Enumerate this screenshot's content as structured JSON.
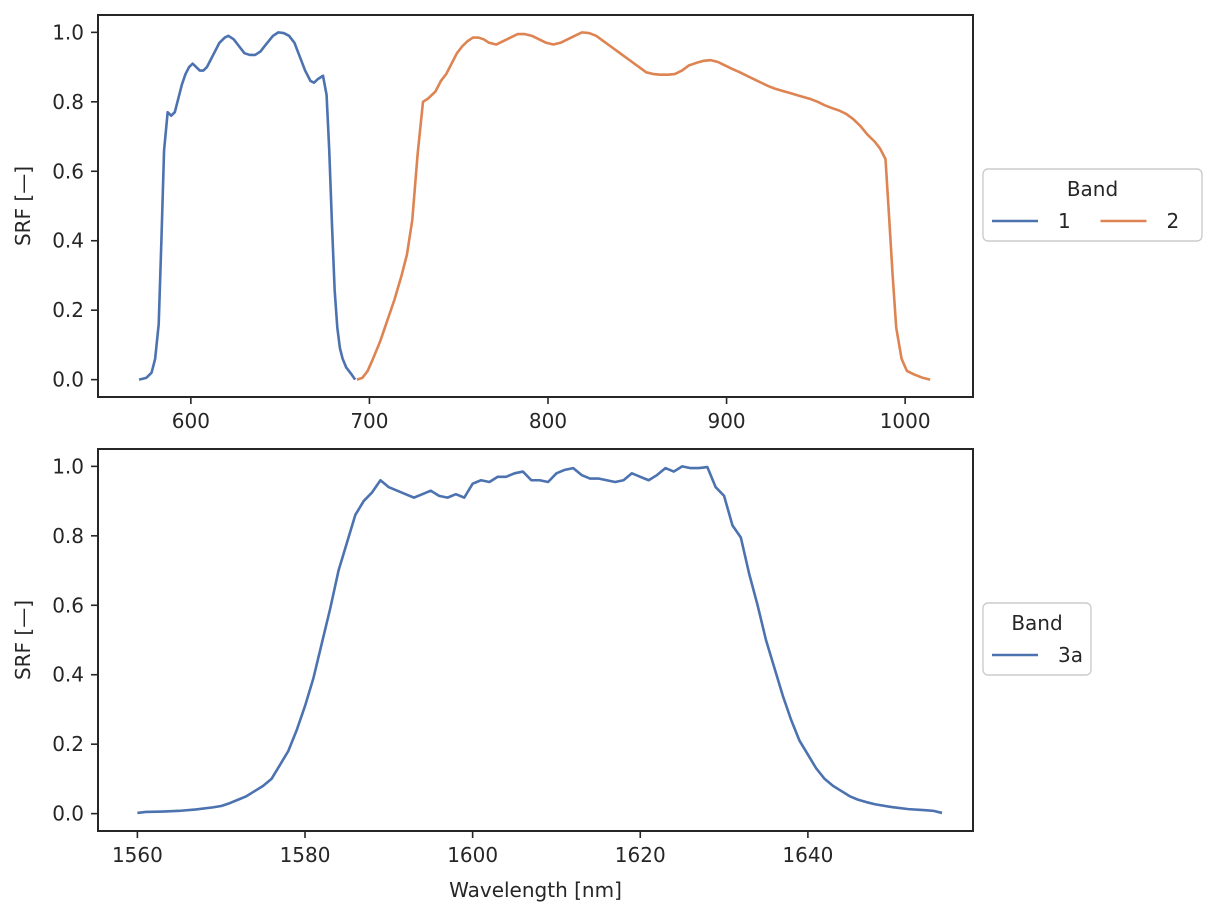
{
  "chart_data": [
    {
      "type": "line",
      "xlabel": "",
      "ylabel": "SRF [—]",
      "xlim": [
        548,
        1038
      ],
      "ylim": [
        -0.05,
        1.05
      ],
      "xticks": [
        600,
        700,
        800,
        900,
        1000
      ],
      "yticks": [
        0.0,
        0.2,
        0.4,
        0.6,
        0.8,
        1.0
      ],
      "grid": false,
      "legend": {
        "title": "Band",
        "placement": "outside-right",
        "columns": 2
      },
      "series": [
        {
          "name": "1",
          "color": "#4c72b0",
          "points": [
            [
              571,
              0.0
            ],
            [
              575,
              0.005
            ],
            [
              578,
              0.02
            ],
            [
              580,
              0.06
            ],
            [
              582,
              0.16
            ],
            [
              583.5,
              0.4
            ],
            [
              585,
              0.66
            ],
            [
              587,
              0.77
            ],
            [
              589,
              0.76
            ],
            [
              591,
              0.77
            ],
            [
              593,
              0.81
            ],
            [
              595,
              0.85
            ],
            [
              597,
              0.88
            ],
            [
              599,
              0.9
            ],
            [
              601,
              0.91
            ],
            [
              603,
              0.9
            ],
            [
              605,
              0.89
            ],
            [
              607,
              0.89
            ],
            [
              609,
              0.9
            ],
            [
              611,
              0.92
            ],
            [
              613,
              0.94
            ],
            [
              616,
              0.97
            ],
            [
              619,
              0.985
            ],
            [
              621,
              0.99
            ],
            [
              624,
              0.98
            ],
            [
              627,
              0.96
            ],
            [
              630,
              0.94
            ],
            [
              633,
              0.935
            ],
            [
              636,
              0.935
            ],
            [
              639,
              0.945
            ],
            [
              642,
              0.965
            ],
            [
              646,
              0.99
            ],
            [
              649,
              1.0
            ],
            [
              652,
              0.998
            ],
            [
              655,
              0.99
            ],
            [
              658,
              0.97
            ],
            [
              661,
              0.93
            ],
            [
              664,
              0.89
            ],
            [
              667,
              0.86
            ],
            [
              669,
              0.855
            ],
            [
              671,
              0.865
            ],
            [
              674,
              0.875
            ],
            [
              676,
              0.82
            ],
            [
              677.5,
              0.66
            ],
            [
              679,
              0.45
            ],
            [
              680.5,
              0.26
            ],
            [
              682,
              0.15
            ],
            [
              683.5,
              0.09
            ],
            [
              685,
              0.06
            ],
            [
              687,
              0.035
            ],
            [
              690,
              0.015
            ],
            [
              692,
              0.0
            ]
          ]
        },
        {
          "name": "2",
          "color": "#dd8452",
          "points": [
            [
              693,
              0.0
            ],
            [
              696,
              0.005
            ],
            [
              699,
              0.025
            ],
            [
              702,
              0.06
            ],
            [
              706,
              0.11
            ],
            [
              710,
              0.17
            ],
            [
              714,
              0.23
            ],
            [
              718,
              0.3
            ],
            [
              721,
              0.36
            ],
            [
              724,
              0.46
            ],
            [
              727,
              0.65
            ],
            [
              730,
              0.8
            ],
            [
              733,
              0.81
            ],
            [
              737,
              0.83
            ],
            [
              740,
              0.86
            ],
            [
              743,
              0.88
            ],
            [
              746,
              0.91
            ],
            [
              749,
              0.94
            ],
            [
              752,
              0.96
            ],
            [
              755,
              0.975
            ],
            [
              758,
              0.985
            ],
            [
              761,
              0.985
            ],
            [
              764,
              0.98
            ],
            [
              767,
              0.97
            ],
            [
              771,
              0.965
            ],
            [
              775,
              0.975
            ],
            [
              779,
              0.985
            ],
            [
              783,
              0.995
            ],
            [
              787,
              0.995
            ],
            [
              791,
              0.99
            ],
            [
              795,
              0.98
            ],
            [
              799,
              0.97
            ],
            [
              803,
              0.965
            ],
            [
              807,
              0.97
            ],
            [
              811,
              0.98
            ],
            [
              815,
              0.99
            ],
            [
              819,
              1.0
            ],
            [
              823,
              0.998
            ],
            [
              827,
              0.99
            ],
            [
              831,
              0.975
            ],
            [
              835,
              0.96
            ],
            [
              839,
              0.945
            ],
            [
              843,
              0.93
            ],
            [
              847,
              0.915
            ],
            [
              851,
              0.9
            ],
            [
              855,
              0.885
            ],
            [
              859,
              0.88
            ],
            [
              863,
              0.878
            ],
            [
              867,
              0.878
            ],
            [
              871,
              0.88
            ],
            [
              875,
              0.89
            ],
            [
              879,
              0.905
            ],
            [
              883,
              0.912
            ],
            [
              887,
              0.918
            ],
            [
              891,
              0.92
            ],
            [
              895,
              0.915
            ],
            [
              899,
              0.905
            ],
            [
              903,
              0.895
            ],
            [
              907,
              0.886
            ],
            [
              911,
              0.876
            ],
            [
              915,
              0.866
            ],
            [
              919,
              0.856
            ],
            [
              923,
              0.846
            ],
            [
              927,
              0.838
            ],
            [
              931,
              0.832
            ],
            [
              935,
              0.826
            ],
            [
              939,
              0.82
            ],
            [
              943,
              0.814
            ],
            [
              947,
              0.808
            ],
            [
              951,
              0.8
            ],
            [
              955,
              0.79
            ],
            [
              959,
              0.782
            ],
            [
              963,
              0.775
            ],
            [
              967,
              0.765
            ],
            [
              971,
              0.75
            ],
            [
              975,
              0.73
            ],
            [
              979,
              0.705
            ],
            [
              983,
              0.685
            ],
            [
              986,
              0.665
            ],
            [
              989,
              0.635
            ],
            [
              991,
              0.47
            ],
            [
              993,
              0.3
            ],
            [
              995,
              0.15
            ],
            [
              998,
              0.06
            ],
            [
              1001,
              0.025
            ],
            [
              1005,
              0.015
            ],
            [
              1010,
              0.005
            ],
            [
              1014,
              0.0
            ]
          ]
        }
      ]
    },
    {
      "type": "line",
      "xlabel": "Wavelength [nm]",
      "ylabel": "SRF [—]",
      "xlim": [
        1555.3,
        1659.7
      ],
      "ylim": [
        -0.05,
        1.05
      ],
      "xticks": [
        1560,
        1580,
        1600,
        1620,
        1640
      ],
      "yticks": [
        0.0,
        0.2,
        0.4,
        0.6,
        0.8,
        1.0
      ],
      "grid": false,
      "legend": {
        "title": "Band",
        "placement": "outside-right",
        "columns": 1
      },
      "series": [
        {
          "name": "3a",
          "color": "#4c72b0",
          "points": [
            [
              1560,
              0.002
            ],
            [
              1561,
              0.005
            ],
            [
              1563,
              0.006
            ],
            [
              1565,
              0.008
            ],
            [
              1567,
              0.012
            ],
            [
              1569,
              0.018
            ],
            [
              1570,
              0.022
            ],
            [
              1571,
              0.03
            ],
            [
              1572,
              0.04
            ],
            [
              1573,
              0.05
            ],
            [
              1574,
              0.065
            ],
            [
              1575,
              0.08
            ],
            [
              1576,
              0.1
            ],
            [
              1577,
              0.14
            ],
            [
              1578,
              0.18
            ],
            [
              1579,
              0.24
            ],
            [
              1580,
              0.31
            ],
            [
              1581,
              0.39
            ],
            [
              1582,
              0.49
            ],
            [
              1583,
              0.59
            ],
            [
              1584,
              0.7
            ],
            [
              1585,
              0.78
            ],
            [
              1586,
              0.86
            ],
            [
              1587,
              0.9
            ],
            [
              1588,
              0.925
            ],
            [
              1589,
              0.96
            ],
            [
              1590,
              0.94
            ],
            [
              1591,
              0.93
            ],
            [
              1592,
              0.92
            ],
            [
              1593,
              0.91
            ],
            [
              1594,
              0.92
            ],
            [
              1595,
              0.93
            ],
            [
              1596,
              0.915
            ],
            [
              1597,
              0.91
            ],
            [
              1598,
              0.92
            ],
            [
              1599,
              0.91
            ],
            [
              1600,
              0.95
            ],
            [
              1601,
              0.96
            ],
            [
              1602,
              0.955
            ],
            [
              1603,
              0.97
            ],
            [
              1604,
              0.97
            ],
            [
              1605,
              0.98
            ],
            [
              1606,
              0.985
            ],
            [
              1607,
              0.96
            ],
            [
              1608,
              0.96
            ],
            [
              1609,
              0.955
            ],
            [
              1610,
              0.98
            ],
            [
              1611,
              0.99
            ],
            [
              1612,
              0.995
            ],
            [
              1613,
              0.975
            ],
            [
              1614,
              0.965
            ],
            [
              1615,
              0.965
            ],
            [
              1616,
              0.96
            ],
            [
              1617,
              0.955
            ],
            [
              1618,
              0.96
            ],
            [
              1619,
              0.98
            ],
            [
              1620,
              0.97
            ],
            [
              1621,
              0.96
            ],
            [
              1622,
              0.975
            ],
            [
              1623,
              0.995
            ],
            [
              1624,
              0.985
            ],
            [
              1625,
              1.0
            ],
            [
              1626,
              0.995
            ],
            [
              1627,
              0.995
            ],
            [
              1628,
              0.998
            ],
            [
              1629,
              0.94
            ],
            [
              1630,
              0.915
            ],
            [
              1631,
              0.83
            ],
            [
              1632,
              0.795
            ],
            [
              1633,
              0.69
            ],
            [
              1634,
              0.6
            ],
            [
              1635,
              0.5
            ],
            [
              1636,
              0.42
            ],
            [
              1637,
              0.34
            ],
            [
              1638,
              0.27
            ],
            [
              1639,
              0.21
            ],
            [
              1640,
              0.17
            ],
            [
              1641,
              0.13
            ],
            [
              1642,
              0.1
            ],
            [
              1643,
              0.08
            ],
            [
              1644,
              0.065
            ],
            [
              1645,
              0.05
            ],
            [
              1646,
              0.04
            ],
            [
              1647,
              0.033
            ],
            [
              1648,
              0.027
            ],
            [
              1650,
              0.019
            ],
            [
              1652,
              0.013
            ],
            [
              1654,
              0.01
            ],
            [
              1655,
              0.008
            ],
            [
              1656,
              0.002
            ]
          ]
        }
      ]
    }
  ]
}
